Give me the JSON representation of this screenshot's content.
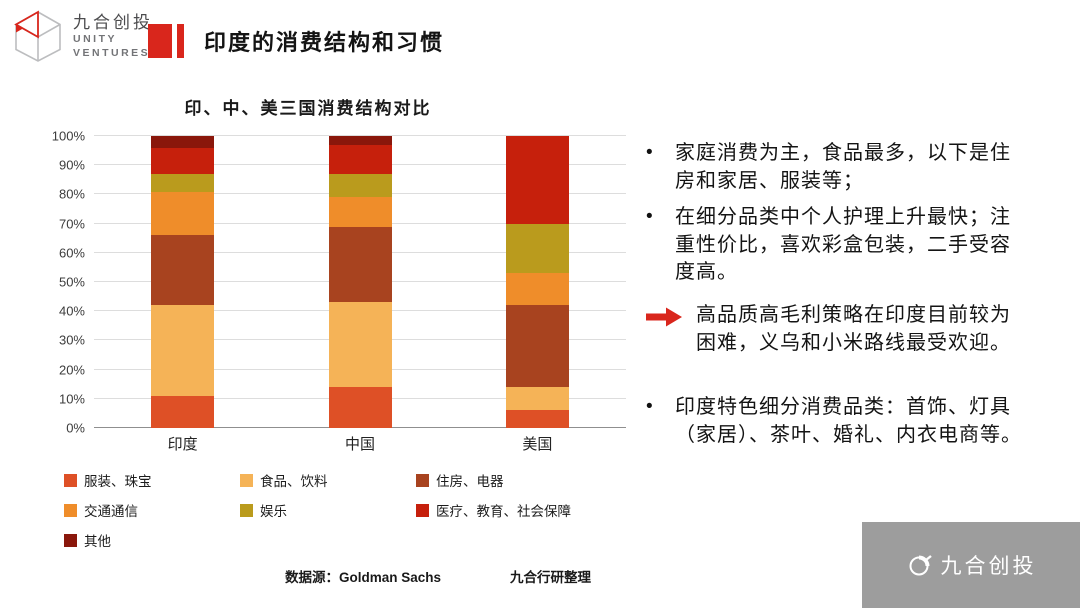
{
  "accent_color": "#d9261c",
  "header": {
    "logo_text": "九合创投",
    "logo_sub1": "UNITY",
    "logo_sub2": "VENTURES",
    "title": "印度的消费结构和习惯"
  },
  "chart_data": {
    "type": "bar",
    "stacked": true,
    "title": "印、中、美三国消费结构对比",
    "categories": [
      "印度",
      "中国",
      "美国"
    ],
    "series": [
      {
        "name": "服装、珠宝",
        "color": "#de5026",
        "values": [
          11,
          14,
          6
        ]
      },
      {
        "name": "食品、饮料",
        "color": "#f5b357",
        "values": [
          31,
          29,
          8
        ]
      },
      {
        "name": "住房、电器",
        "color": "#a8431f",
        "values": [
          24,
          26,
          28
        ]
      },
      {
        "name": "交通通信",
        "color": "#ef8d2a",
        "values": [
          15,
          10,
          11
        ]
      },
      {
        "name": "娱乐",
        "color": "#ba9b1d",
        "values": [
          6,
          8,
          17
        ]
      },
      {
        "name": "医疗、教育、社会保障",
        "color": "#c6200c",
        "values": [
          9,
          10,
          30
        ]
      },
      {
        "name": "其他",
        "color": "#8a170b",
        "values": [
          4,
          3,
          0
        ]
      }
    ],
    "ylim": [
      0,
      100
    ],
    "ytick_step": 10,
    "ytick_suffix": "%",
    "grid": true,
    "legend_position": "bottom"
  },
  "footer": {
    "source": "数据源：Goldman Sachs",
    "credit": "九合行研整理"
  },
  "notes": [
    {
      "type": "bullet",
      "text": "家庭消费为主，食品最多，以下是住房和家居、服装等；"
    },
    {
      "type": "bullet",
      "text": "在细分品类中个人护理上升最快；注重性价比，喜欢彩盒包装，二手受容度高。"
    },
    {
      "type": "arrow",
      "text": "高品质高毛利策略在印度目前较为困难，义乌和小米路线最受欢迎。"
    },
    {
      "type": "bullet",
      "text": "印度特色细分消费品类：首饰、灯具（家居）、茶叶、婚礼、内衣电商等。"
    }
  ],
  "watermark": {
    "text": "九合创投"
  }
}
